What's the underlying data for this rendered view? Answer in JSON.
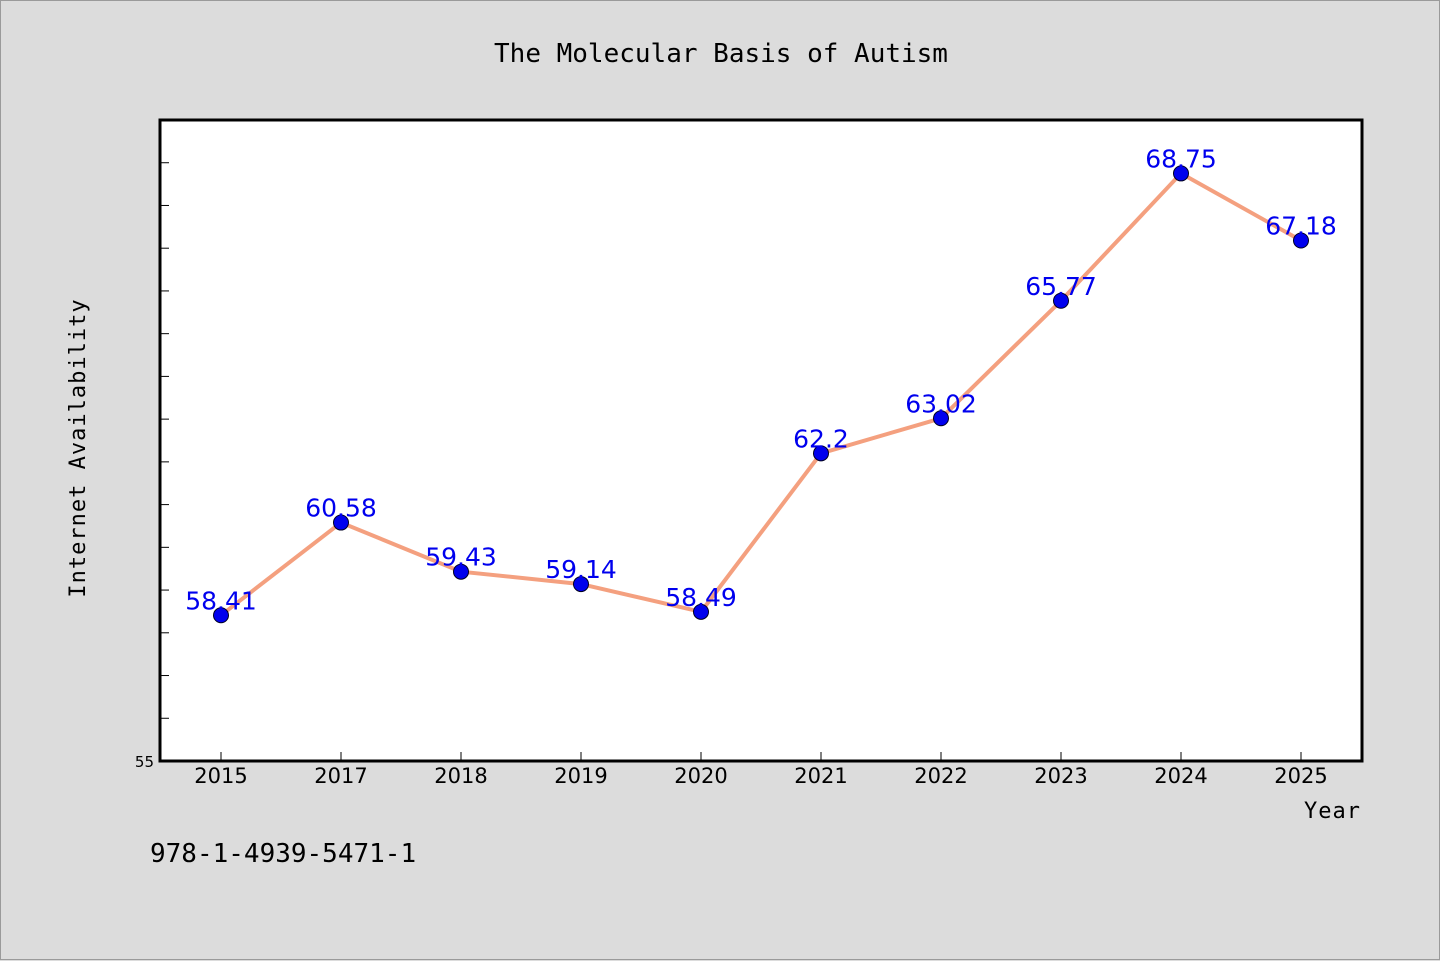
{
  "chart_data": {
    "type": "line",
    "title": "The Molecular Basis of Autism",
    "xlabel": "Year",
    "ylabel": "Internet Availability",
    "categories": [
      "2015",
      "2017",
      "2018",
      "2019",
      "2020",
      "2021",
      "2022",
      "2023",
      "2024",
      "2025"
    ],
    "series": [
      {
        "values": [
          58.41,
          60.58,
          59.43,
          59.14,
          58.49,
          62.2,
          63.02,
          65.77,
          68.75,
          67.18
        ],
        "labels": [
          "58.41",
          "60.58",
          "59.43",
          "59.14",
          "58.49",
          "62.2",
          "63.02",
          "65.77",
          "68.75",
          "67.18"
        ],
        "line_color": "#f4a07f",
        "marker_color": "#0000ee"
      }
    ],
    "ylim": [
      55,
      70
    ],
    "y_tick_labels": [
      "55"
    ],
    "y_minor_tick_step": 1,
    "grid": false,
    "legend": "none"
  },
  "footer": {
    "isbn": "978-1-4939-5471-1"
  }
}
